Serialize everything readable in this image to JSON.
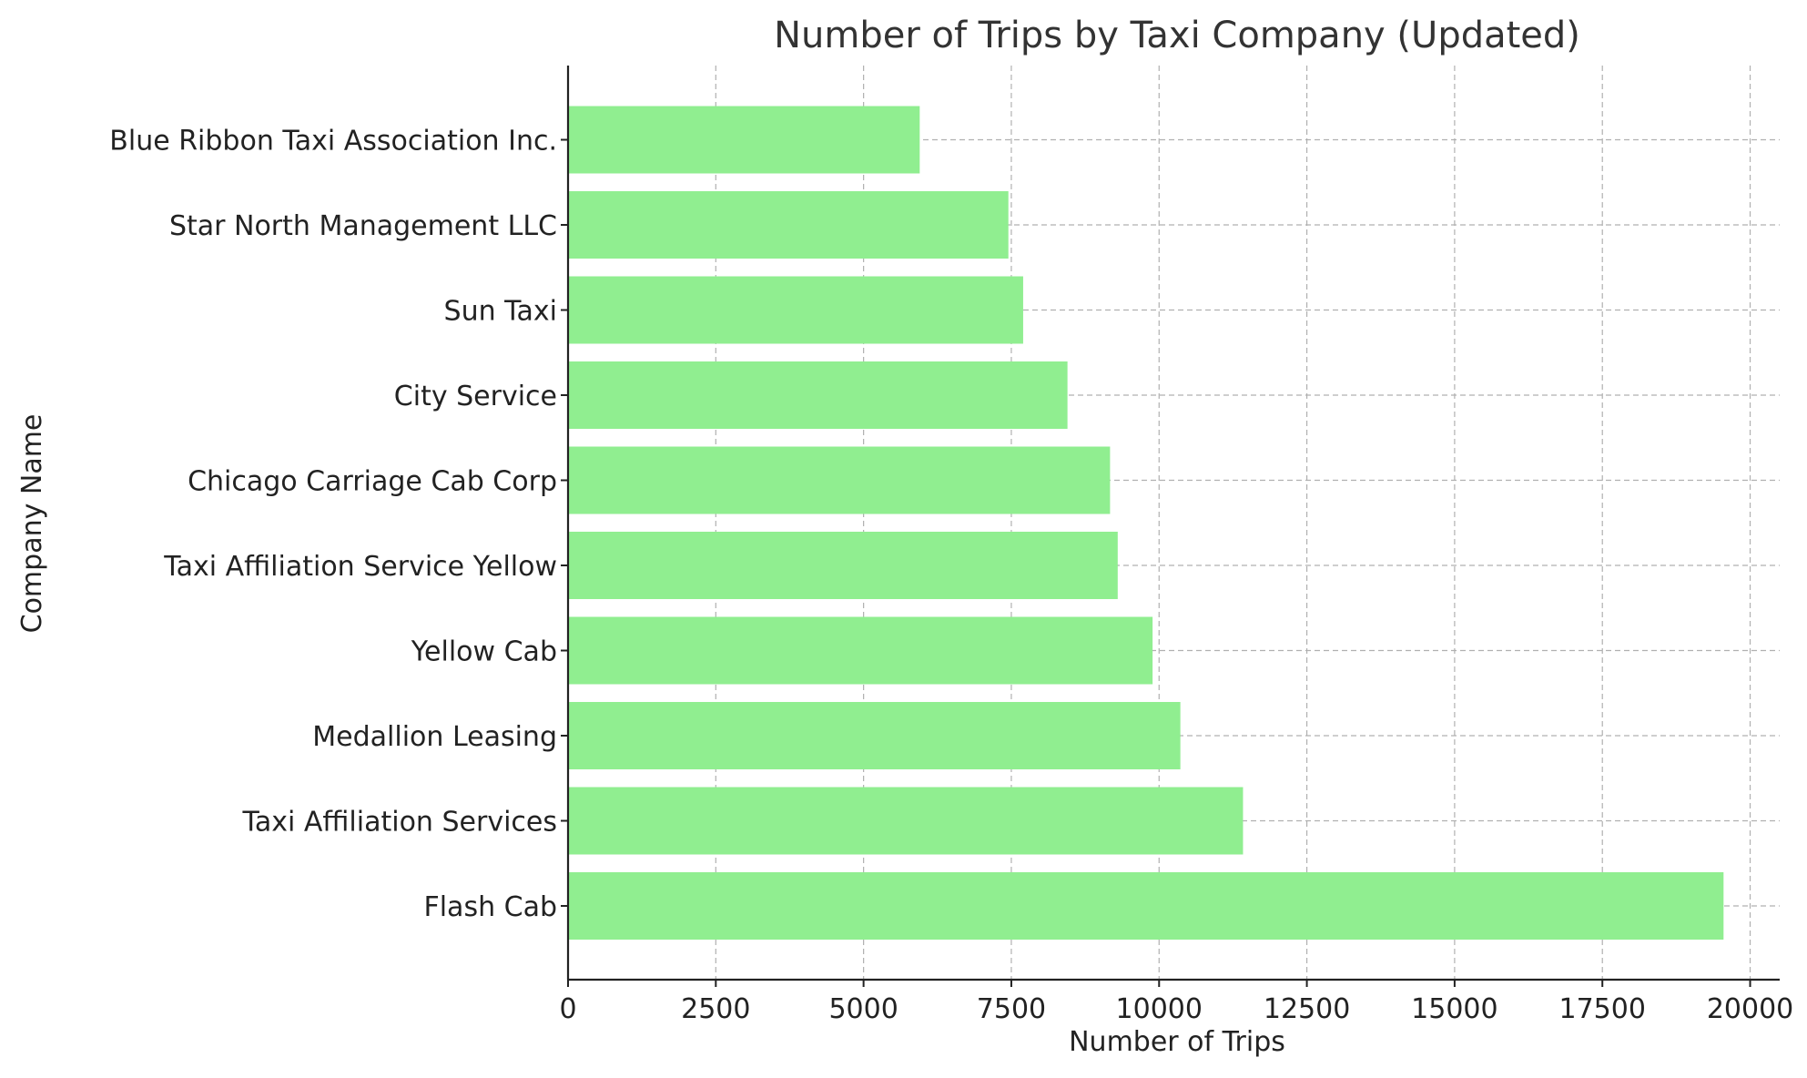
{
  "chart_data": {
    "type": "bar",
    "orientation": "horizontal",
    "title": "Number of Trips by Taxi Company (Updated)",
    "xlabel": "Number of Trips",
    "ylabel": "Company Name",
    "categories": [
      "Flash Cab",
      "Taxi Affiliation Services",
      "Medallion Leasing",
      "Yellow Cab",
      "Taxi Affiliation Service Yellow",
      "Chicago Carriage Cab Corp",
      "City Service",
      "Sun Taxi",
      "Star North Management LLC",
      "Blue Ribbon Taxi Association Inc."
    ],
    "values": [
      19550,
      11420,
      10360,
      9890,
      9300,
      9170,
      8450,
      7700,
      7450,
      5950
    ],
    "xlim": [
      0,
      20500
    ],
    "xticks": [
      0,
      2500,
      5000,
      7500,
      10000,
      12500,
      15000,
      17500,
      20000
    ],
    "grid": true,
    "bar_color": "#90ee90",
    "axis_color": "#222222",
    "grid_color": "#b0b0b0",
    "text_color": "#222222",
    "title_color": "#333333"
  }
}
